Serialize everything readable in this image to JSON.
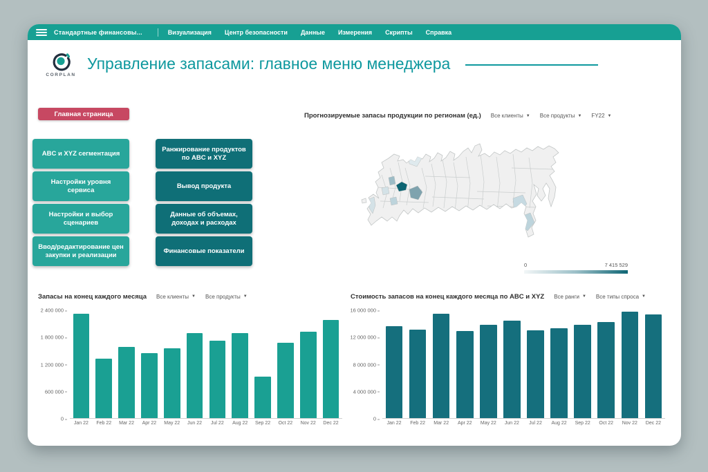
{
  "navbar": {
    "menu_title": "Стандартные финансовы...",
    "items": [
      "Визуализация",
      "Центр безопасности",
      "Данные",
      "Измерения",
      "Скрипты",
      "Справка"
    ]
  },
  "header": {
    "logo_text": "CORPLAN",
    "title": "Управление запасами: главное меню менеджера"
  },
  "home_button": {
    "label": "Главная страница"
  },
  "menu_buttons": {
    "left": [
      "ABC и XYZ сегментация",
      "Настройки уровня сервиса",
      "Настройки и выбор сценариев",
      "Ввод/редактирование цен закупки и реализации"
    ],
    "right": [
      "Ранжирование продуктов по ABC и XYZ",
      "Вывод продукта",
      "Данные об объемах, доходах и расходах",
      "Финансовые показатели"
    ]
  },
  "map": {
    "title": "Прогнозируемые запасы продукции по регионам (ед.)",
    "filters": [
      "Все клиенты",
      "Все продукты",
      "FY22"
    ],
    "legend": {
      "min": "0",
      "max": "7 415 529"
    },
    "colors": {
      "base": "#f0f0f0",
      "border": "#c2c6c6",
      "dark": "#0c6472",
      "medium": "#7fa3ae",
      "slate": "#9dbcc6",
      "light": "#bdd4dc",
      "lighter": "#c6dae2",
      "pale": "#d4e2e7",
      "palest": "#dfeaee"
    }
  },
  "colors": {
    "accent_teal": "#17a093",
    "dark_teal": "#0f6f77",
    "crimson": "#c74862",
    "title_teal": "#0e989e"
  },
  "chart_data": [
    {
      "type": "bar",
      "title": "Запасы на конец каждого месяца",
      "filters": [
        "Все клиенты",
        "Все продукты"
      ],
      "categories": [
        "Jan 22",
        "Feb 22",
        "Mar 22",
        "Apr 22",
        "May 22",
        "Jun 22",
        "Jul 22",
        "Aug 22",
        "Sep 22",
        "Oct 22",
        "Nov 22",
        "Dec 22"
      ],
      "values": [
        2330000,
        1330000,
        1590000,
        1450000,
        1560000,
        1890000,
        1730000,
        1900000,
        920000,
        1680000,
        1920000,
        2180000
      ],
      "ylim": [
        0,
        2400000
      ],
      "yticks": [
        0,
        600000,
        1200000,
        1800000,
        2400000
      ],
      "ytick_labels": [
        "0",
        "600 000",
        "1 200 000",
        "1 800 000",
        "2 400 000"
      ],
      "bar_color": "#1aa093",
      "xlabel": "",
      "ylabel": "",
      "grid": false,
      "legend_position": "none"
    },
    {
      "type": "bar",
      "title": "Стоимость запасов на конец каждого месяца по ABC и XYZ",
      "filters": [
        "Все ранги",
        "Все типы спроса"
      ],
      "categories": [
        "Jan 22",
        "Feb 22",
        "Mar 22",
        "Apr 22",
        "May 22",
        "Jun 22",
        "Jul 22",
        "Aug 22",
        "Sep 22",
        "Oct 22",
        "Nov 22",
        "Dec 22"
      ],
      "values": [
        13600000,
        13100000,
        15500000,
        12900000,
        13800000,
        14500000,
        13000000,
        13300000,
        13800000,
        14300000,
        15800000,
        15400000
      ],
      "ylim": [
        0,
        16000000
      ],
      "yticks": [
        0,
        4000000,
        8000000,
        12000000,
        16000000
      ],
      "ytick_labels": [
        "0",
        "4 000 000",
        "8 000 000",
        "12 000 000",
        "16 000 000"
      ],
      "bar_color": "#156f7d",
      "xlabel": "",
      "ylabel": "",
      "grid": false,
      "legend_position": "none"
    }
  ]
}
